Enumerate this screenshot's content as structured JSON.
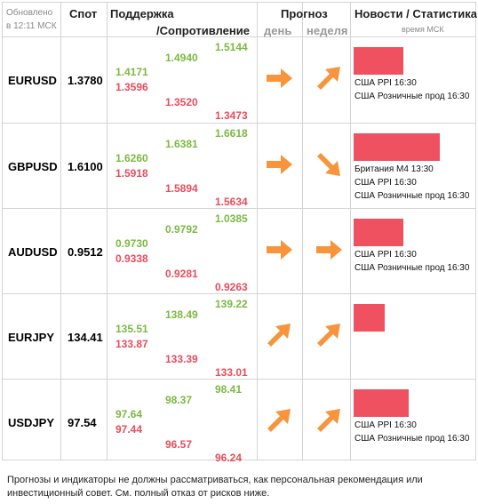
{
  "header": {
    "updated_line1": "Обновлено",
    "updated_line2": "в 12:11 МСК",
    "spot": "Спот",
    "support": "Поддержка",
    "resistance": "/Сопротивление",
    "forecast": "Прогноз",
    "day": "день",
    "week": "неделя",
    "news": "Новости / Статистика",
    "news_sub": "время МСК"
  },
  "rows": [
    {
      "pair": "EURUSD",
      "spot": "1.3780",
      "s1_g": "1.4171",
      "s1_r": "1.3596",
      "s2_g": "1.4940",
      "s2_r": "1.3520",
      "s3_g": "1.5144",
      "s3_r": "1.3473",
      "day_arrow": "arrow-right-icon",
      "week_arrow": "arrow-up-right-icon",
      "bar_level": 0.58,
      "news": [
        "США PPI 16:30",
        "США Розничные прод 16:30"
      ]
    },
    {
      "pair": "GBPUSD",
      "spot": "1.6100",
      "s1_g": "1.6260",
      "s1_r": "1.5918",
      "s2_g": "1.6381",
      "s2_r": "1.5894",
      "s3_g": "1.6618",
      "s3_r": "1.5634",
      "day_arrow": "arrow-right-icon",
      "week_arrow": "arrow-down-right-icon",
      "bar_level": 1.0,
      "news": [
        "Британия М4 13:30",
        "США PPI 16:30",
        "США Розничные прод 16:30"
      ]
    },
    {
      "pair": "AUDUSD",
      "spot": "0.9512",
      "s1_g": "0.9730",
      "s1_r": "0.9338",
      "s2_g": "0.9792",
      "s2_r": "0.9281",
      "s3_g": "1.0385",
      "s3_r": "0.9263",
      "day_arrow": "arrow-right-icon",
      "week_arrow": "arrow-right-icon",
      "bar_level": 0.58,
      "news": [
        "США PPI 16:30",
        "США Розничные прод 16:30"
      ]
    },
    {
      "pair": "EURJPY",
      "spot": "134.41",
      "s1_g": "135.51",
      "s1_r": "133.87",
      "s2_g": "138.49",
      "s2_r": "133.39",
      "s3_g": "139.22",
      "s3_r": "133.01",
      "day_arrow": "arrow-up-right-icon",
      "week_arrow": "arrow-up-right-icon",
      "bar_level": 0.36,
      "news": []
    },
    {
      "pair": "USDJPY",
      "spot": "97.54",
      "s1_g": "97.64",
      "s1_r": "97.44",
      "s2_g": "98.37",
      "s2_r": "96.57",
      "s3_g": "98.41",
      "s3_r": "96.24",
      "day_arrow": "arrow-up-right-icon",
      "week_arrow": "arrow-up-right-icon",
      "bar_level": 0.64,
      "news": [
        "США PPI 16:30",
        "США Розничные прод 16:30"
      ]
    }
  ],
  "colors": {
    "support": "#7cb843",
    "resistance": "#e84c5c",
    "arrow": "#f7943c",
    "bar": "#ef5160"
  },
  "disclaimer": "Прогнозы и индикаторы не должны рассматриваться, как персональная рекомендация или инвестиционный совет. См. полный отказ от рисков ниже."
}
